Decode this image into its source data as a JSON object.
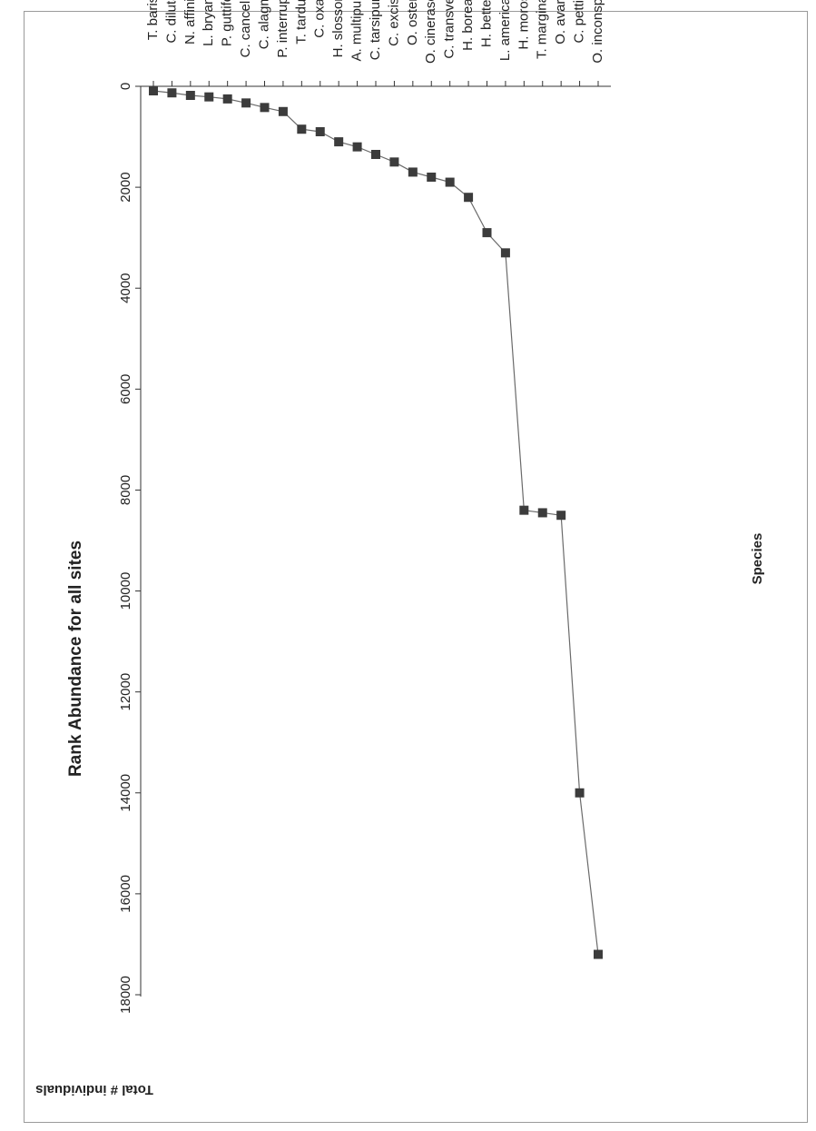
{
  "chart_data": {
    "type": "line",
    "title": "Rank Abundance for all sites",
    "xlabel": "Species",
    "ylabel": "Total # individuals",
    "ylim": [
      0,
      18000
    ],
    "yticks": [
      "0",
      "2000",
      "4000",
      "6000",
      "8000",
      "10000",
      "12000",
      "14000",
      "16000",
      "18000"
    ],
    "grid": false,
    "legend": "none",
    "orientation": "rotated 180 degrees",
    "marker": "square",
    "series_color": "#3c3c3c",
    "categories": [
      "O. inconspicua",
      "C. pettiti",
      "O. avara",
      "T. marginatus",
      "H. morosa",
      "L. americanus",
      "H. betteni",
      "H. borealis",
      "C. transversa",
      "O. cinerascens",
      "O. osteni",
      "C. excisa",
      "C. tarsipuncta",
      "A.  multipuncta",
      "H. slossonae",
      "C. oxa",
      "T. tardus",
      "P.  interruptus",
      "C. alagma",
      "C. cancellata",
      "P.  guttifer",
      "L.  bryanti",
      "N. affinis",
      "C. diluta",
      "T. baris"
    ],
    "values": [
      17200,
      14000,
      8500,
      8450,
      8400,
      3300,
      2900,
      2200,
      1900,
      1800,
      1700,
      1500,
      1350,
      1200,
      1100,
      900,
      850,
      500,
      420,
      330,
      250,
      210,
      180,
      130,
      90
    ]
  }
}
